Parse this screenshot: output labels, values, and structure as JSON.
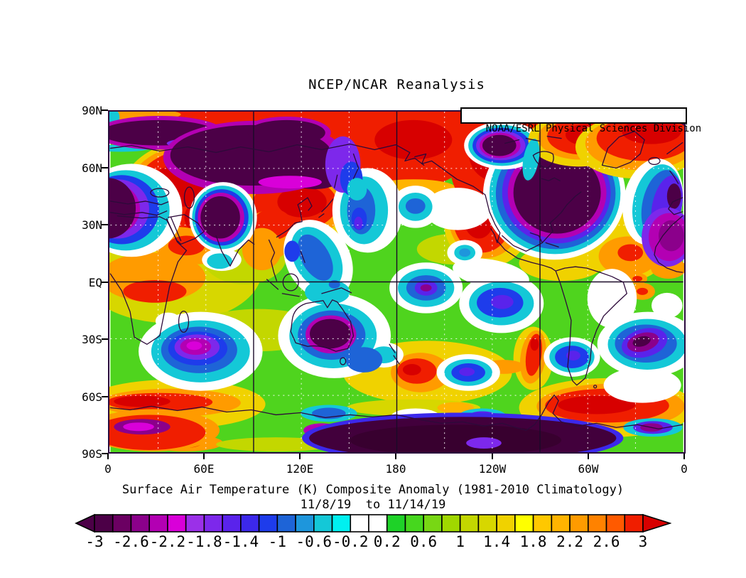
{
  "title": "NCEP/NCAR Reanalysis",
  "attribution": "NOAA/ESRL Physical Sciences Division",
  "caption": {
    "line1": "Surface Air Temperature (K) Composite Anomaly (1981-2010 Climatology)",
    "line2": "11/8/19  to 11/14/19"
  },
  "axes": {
    "lat_ticks": [
      "90N",
      "60N",
      "30N",
      "EQ",
      "30S",
      "60S",
      "90S"
    ],
    "lon_ticks": [
      "0",
      "60E",
      "120E",
      "180",
      "120W",
      "60W",
      "0"
    ]
  },
  "colorbar": {
    "units": "K",
    "tick_labels": [
      "-3",
      "-2.6",
      "-2.2",
      "-1.8",
      "-1.4",
      "-1",
      "-0.6",
      "-0.2",
      "0.2",
      "0.6",
      "1",
      "1.4",
      "1.8",
      "2.2",
      "2.6",
      "3"
    ],
    "cell_step": 0.2,
    "cell_colors": [
      "#4c0047",
      "#6b0062",
      "#8b008b",
      "#b300b3",
      "#d900d9",
      "#9b30e8",
      "#7d28eb",
      "#5a23eb",
      "#3c28eb",
      "#1e3ceb",
      "#1e64d7",
      "#1e96dc",
      "#14c8d7",
      "#00f0f0",
      "#ffffff",
      "#ffffff",
      "#1ed228",
      "#46d71e",
      "#78d714",
      "#a0d700",
      "#c3d700",
      "#d7d700",
      "#f0d200",
      "#ffff00",
      "#ffc800",
      "#ffb400",
      "#ff9b00",
      "#ff8200",
      "#ff5a00",
      "#f01e00"
    ],
    "left_arrow_color": "#4c0047",
    "right_arrow_color": "#d70000"
  },
  "chart_data": {
    "type": "heatmap",
    "title": "NCEP/NCAR Reanalysis",
    "variable": "Surface Air Temperature Composite Anomaly",
    "units": "K",
    "climatology": "1981-2010",
    "period": "11/8/19 to 11/14/19",
    "attribution": "NOAA/ESRL Physical Sciences Division",
    "projection": "cylindrical equidistant, longitude 0-360E",
    "x_ticks": [
      "0",
      "60E",
      "120E",
      "180",
      "120W",
      "60W",
      "0"
    ],
    "y_ticks": [
      "90N",
      "60N",
      "30N",
      "EQ",
      "30S",
      "60S",
      "90S"
    ],
    "grid": "solid lines at 90E, 180, 90W and Equator; dotted white lines every 30 degrees",
    "colorbar_levels": [
      -3,
      -2.8,
      -2.6,
      -2.4,
      -2.2,
      -2,
      -1.8,
      -1.6,
      -1.4,
      -1.2,
      -1,
      -0.8,
      -0.6,
      -0.4,
      -0.2,
      0,
      0.2,
      0.4,
      0.6,
      0.8,
      1,
      1.2,
      1.4,
      1.6,
      1.8,
      2,
      2.2,
      2.4,
      2.6,
      2.8,
      3
    ],
    "anomaly_features": [
      {
        "region": "Arctic / Siberian Arctic coast band (70-90N)",
        "anomaly_K": "> +3"
      },
      {
        "region": "North-central Siberia (50-80N, 60-150E)",
        "anomaly_K": "< -3"
      },
      {
        "region": "Western Europe / NE Atlantic (near 0 lon)",
        "anomaly_K": "-2 to < -3"
      },
      {
        "region": "Eastern Europe / western Russia / Middle East",
        "anomaly_K": "+2 to > +3"
      },
      {
        "region": "Tibetan Plateau / central Asia",
        "anomaly_K": "< -3"
      },
      {
        "region": "Mongolia / northern China",
        "anomaly_K": "+2 to > +3"
      },
      {
        "region": "Alaska / Yukon",
        "anomaly_K": "-2 to < -3"
      },
      {
        "region": "Western North America (Rockies, Bering)",
        "anomaly_K": "+2 to > +3"
      },
      {
        "region": "Central-eastern Canada and eastern US",
        "anomaly_K": "< -3"
      },
      {
        "region": "Greenland",
        "anomaly_K": "+2 to > +3"
      },
      {
        "region": "North Atlantic (Iceland / Norwegian Sea)",
        "anomaly_K": "> +3"
      },
      {
        "region": "West Africa coast (near 20W)",
        "anomaly_K": "-2 to -2.6"
      },
      {
        "region": "Japan / northwest Pacific",
        "anomaly_K": "-1 to -1.6"
      },
      {
        "region": "Equatorial central Pacific near date line",
        "anomaly_K": "-1.4 to -2.4"
      },
      {
        "region": "Eastern tropical Pacific",
        "anomaly_K": "-1 to -1.4"
      },
      {
        "region": "Australia",
        "anomaly_K": "< -3"
      },
      {
        "region": "Southern Indian Ocean (30-50S)",
        "anomaly_K": "-2 to -2.4"
      },
      {
        "region": "South Atlantic (35-55S)",
        "anomaly_K": "-2 to -2.6"
      },
      {
        "region": "Southern South America (Chile / Argentina)",
        "anomaly_K": "+2 to +3"
      },
      {
        "region": "Southern Ocean bands near 60S",
        "anomaly_K": "+2 to > +3"
      },
      {
        "region": "Antarctic interior (60E-150W sector)",
        "anomaly_K": "< -3"
      },
      {
        "region": "Tropics background",
        "anomaly_K": "0 to +1"
      }
    ]
  }
}
